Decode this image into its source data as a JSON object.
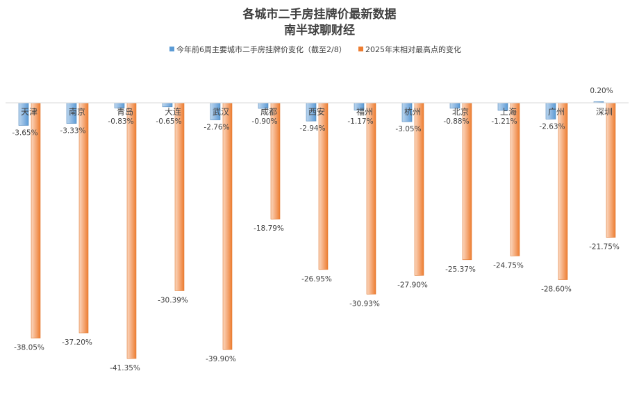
{
  "chart_data": {
    "type": "bar",
    "title": "各城市二手房挂牌价最新数据",
    "subtitle": "南半球聊财经",
    "xlabel": "",
    "ylabel": "",
    "ylim": [
      -42.5,
      2
    ],
    "grid": false,
    "legend_position": "top",
    "categories": [
      "天津",
      "南京",
      "青岛",
      "大连",
      "武汉",
      "成都",
      "西安",
      "福州",
      "杭州",
      "北京",
      "上海",
      "广州",
      "深圳"
    ],
    "series": [
      {
        "name": "今年前6周主要城市二手房挂牌价变化（截至2/8）",
        "color": "#5b9bd5",
        "values": [
          -3.65,
          -3.33,
          -0.83,
          -0.65,
          -2.76,
          -0.9,
          -2.94,
          -1.17,
          -3.05,
          -0.88,
          -1.21,
          -2.63,
          0.2
        ],
        "labels": [
          "-3.65%",
          "-3.33%",
          "-0.83%",
          "-0.65%",
          "-2.76%",
          "-0.90%",
          "-2.94%",
          "-1.17%",
          "-3.05%",
          "-0.88%",
          "-1.21%",
          "-2.63%",
          "0.20%"
        ]
      },
      {
        "name": "2025年末相对最高点的变化",
        "color": "#ed7d31",
        "values": [
          -38.05,
          -37.2,
          -41.35,
          -30.39,
          -39.9,
          -18.79,
          -26.95,
          -30.93,
          -27.9,
          -25.37,
          -24.75,
          -28.6,
          -21.75
        ],
        "labels": [
          "-38.05%",
          "-37.20%",
          "-41.35%",
          "-30.39%",
          "-39.90%",
          "-18.79%",
          "-26.95%",
          "-30.93%",
          "-27.90%",
          "-25.37%",
          "-24.75%",
          "-28.60%",
          "-21.75%"
        ]
      }
    ]
  }
}
